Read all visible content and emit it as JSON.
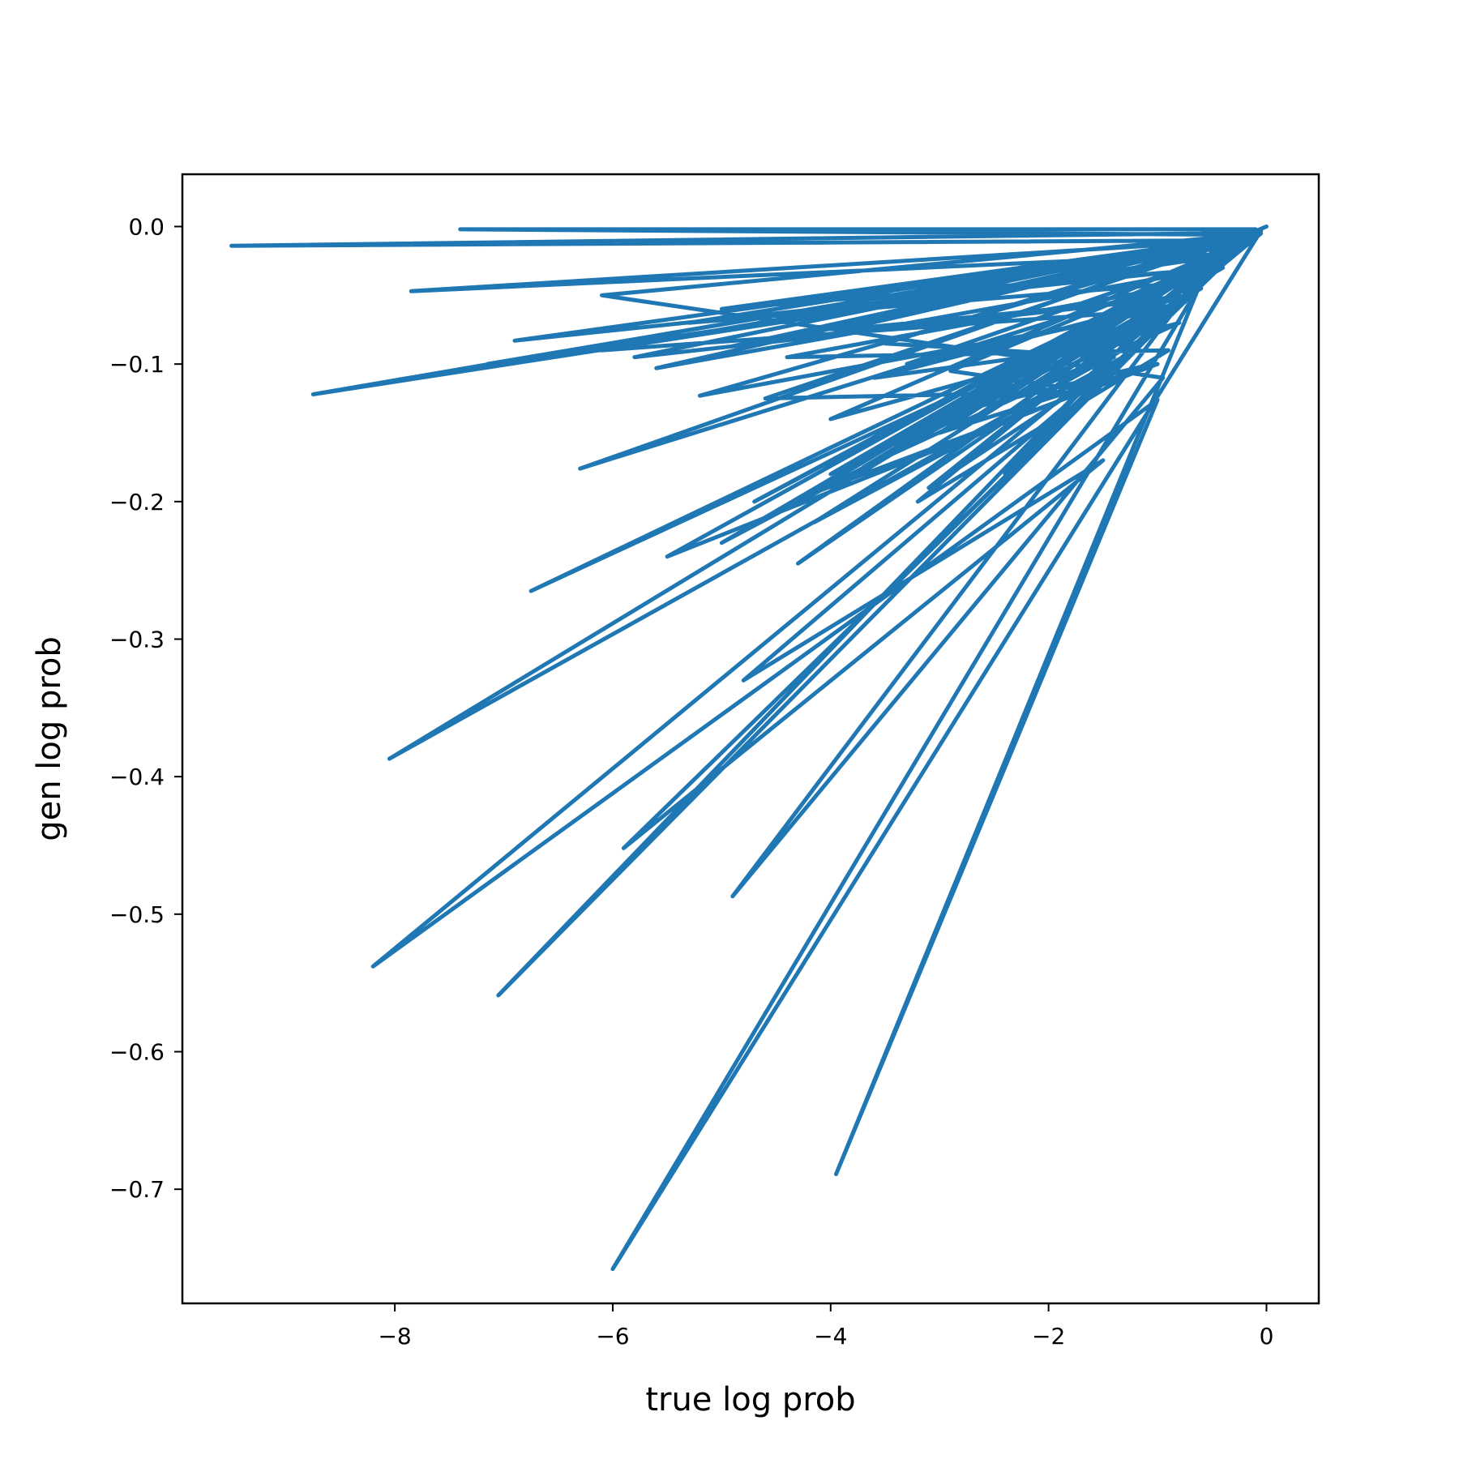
{
  "chart_data": {
    "type": "line",
    "title": "",
    "xlabel": "true log prob",
    "ylabel": "gen log prob",
    "xlim": [
      -9.95,
      0.48
    ],
    "ylim": [
      -0.783,
      0.038
    ],
    "x_ticks": [
      -8,
      -6,
      -4,
      -2,
      0
    ],
    "x_tick_labels": [
      "−8",
      "−6",
      "−4",
      "−2",
      "0"
    ],
    "y_ticks": [
      0.0,
      -0.1,
      -0.2,
      -0.3,
      -0.4,
      -0.5,
      -0.6,
      -0.7
    ],
    "y_tick_labels": [
      "0.0",
      "−0.1",
      "−0.2",
      "−0.3",
      "−0.4",
      "−0.5",
      "−0.6",
      "−0.7"
    ],
    "grid": false,
    "legend": "none",
    "colors": {
      "line": "#1f77b4",
      "frame": "#000000",
      "background": "#ffffff"
    },
    "series": [
      {
        "x": [
          0.0,
          -0.3,
          -9.5,
          -0.6,
          -0.1,
          -7.4,
          -0.2,
          -8.75,
          -0.4,
          -7.85,
          -0.25,
          -6.9,
          -0.5,
          -0.15,
          -6.3,
          -0.8,
          -0.35,
          -6.0,
          -0.05,
          -4.3,
          -0.9,
          -5.2,
          -0.45,
          -7.05,
          -0.7,
          -3.4,
          -0.2,
          -8.05,
          -1.1,
          -4.8,
          -1.5,
          -5.9,
          -0.3,
          -7.15,
          -0.05,
          -8.2,
          -1.0,
          -3.95,
          -0.6,
          -6.75,
          -0.55,
          -4.9,
          -0.95,
          -6.1,
          -0.2,
          -3.1,
          -1.2,
          -4.15,
          -0.45,
          -5.6,
          -0.1,
          -4.9,
          -0.65,
          -3.9,
          -0.3,
          -4.6,
          -1.6,
          -2.9,
          -0.5,
          -3.4,
          -0.35,
          -4.0,
          -0.8,
          -3.7,
          -0.15,
          -5.5,
          -1.05,
          -2.6,
          -0.4,
          -5.0,
          -0.25,
          -3.2,
          -0.9,
          -4.4,
          -0.6,
          -5.3,
          -0.2,
          -2.4,
          -1.3,
          -3.6,
          -0.7,
          -5.8,
          -0.1,
          -3.0,
          -1.0,
          -4.2,
          -0.3,
          -6.1,
          -0.85,
          -2.8,
          -0.5,
          -4.7,
          -0.05,
          -3.5,
          -1.4,
          -2.2,
          -0.6,
          -5.0,
          -0.3,
          -2.5,
          -0.15,
          -4.0,
          -0.75,
          -3.3,
          -0.4,
          -1.9,
          -0.2
        ],
        "y": [
          0.0,
          -0.01,
          -0.014,
          -0.005,
          -0.002,
          -0.002,
          -0.006,
          -0.122,
          -0.02,
          -0.047,
          -0.01,
          -0.083,
          -0.03,
          -0.004,
          -0.176,
          -0.04,
          -0.008,
          -0.758,
          -0.003,
          -0.245,
          -0.06,
          -0.123,
          -0.015,
          -0.559,
          -0.05,
          -0.26,
          -0.01,
          -0.387,
          -0.08,
          -0.33,
          -0.17,
          -0.452,
          -0.02,
          -0.1,
          -0.005,
          -0.538,
          -0.126,
          -0.689,
          -0.04,
          -0.265,
          -0.03,
          -0.487,
          -0.11,
          -0.05,
          -0.006,
          -0.19,
          -0.09,
          -0.215,
          -0.03,
          -0.103,
          -0.004,
          -0.087,
          -0.05,
          -0.075,
          -0.01,
          -0.125,
          -0.12,
          -0.105,
          -0.025,
          -0.16,
          -0.015,
          -0.14,
          -0.07,
          -0.175,
          -0.005,
          -0.24,
          -0.1,
          -0.13,
          -0.03,
          -0.06,
          -0.008,
          -0.2,
          -0.09,
          -0.095,
          -0.04,
          -0.07,
          -0.006,
          -0.18,
          -0.085,
          -0.11,
          -0.05,
          -0.095,
          -0.003,
          -0.15,
          -0.1,
          -0.195,
          -0.01,
          -0.09,
          -0.06,
          -0.145,
          -0.025,
          -0.2,
          -0.002,
          -0.085,
          -0.095,
          -0.12,
          -0.045,
          -0.23,
          -0.012,
          -0.11,
          -0.004,
          -0.18,
          -0.055,
          -0.1,
          -0.02,
          -0.145,
          -0.006
        ]
      }
    ]
  }
}
